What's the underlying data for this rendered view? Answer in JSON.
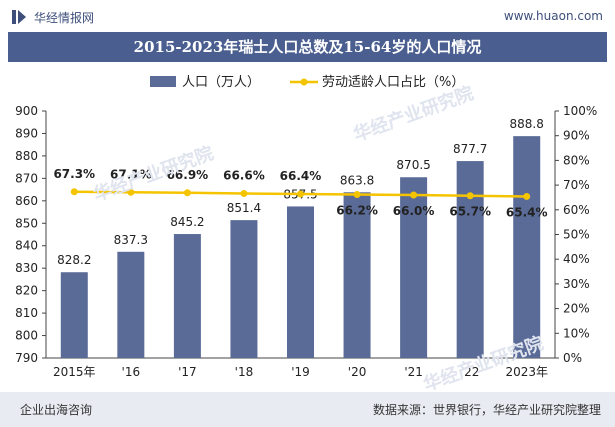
{
  "header": {
    "brand": "华经情报网",
    "url": "www.huaon.com"
  },
  "title": "2015-2023年瑞士人口总数及15-64岁的人口情况",
  "footer": {
    "left": "企业出海咨询",
    "right": "数据来源：世界银行，华经产业研究院整理"
  },
  "watermarks": [
    "华经产业研究院",
    "华经产业研究院",
    "华经产业研究院"
  ],
  "colors": {
    "bar": "#5b6b97",
    "line": "#f5c400",
    "title_bg": "#4a5f8f"
  },
  "chart_data": {
    "type": "bar",
    "categories": [
      "2015年",
      "'16",
      "'17",
      "'18",
      "'19",
      "'20",
      "'21",
      "'22",
      "2023年"
    ],
    "series": [
      {
        "name": "人口（万人）",
        "type": "bar",
        "axis": "left",
        "values": [
          828.2,
          837.3,
          845.2,
          851.4,
          857.5,
          863.8,
          870.5,
          877.7,
          888.8
        ],
        "labels": [
          "828.2",
          "837.3",
          "845.2",
          "851.4",
          "857.5",
          "863.8",
          "870.5",
          "877.7",
          "888.8"
        ]
      },
      {
        "name": "劳动适龄人口占比（%）",
        "type": "line",
        "axis": "right",
        "values": [
          67.3,
          67.1,
          66.9,
          66.6,
          66.4,
          66.2,
          66.0,
          65.7,
          65.4
        ],
        "labels": [
          "67.3%",
          "67.1%",
          "66.9%",
          "66.6%",
          "66.4%",
          "66.2%",
          "66.0%",
          "65.7%",
          "65.4%"
        ]
      }
    ],
    "y_left": {
      "min": 790,
      "max": 900,
      "ticks": [
        "790",
        "800",
        "810",
        "820",
        "830",
        "840",
        "850",
        "860",
        "870",
        "880",
        "890",
        "900"
      ]
    },
    "y_right": {
      "min": 0,
      "max": 100,
      "ticks": [
        "0%",
        "10%",
        "20%",
        "30%",
        "40%",
        "50%",
        "60%",
        "70%",
        "80%",
        "90%",
        "100%"
      ]
    },
    "legend_position": "top-center",
    "grid": false
  }
}
